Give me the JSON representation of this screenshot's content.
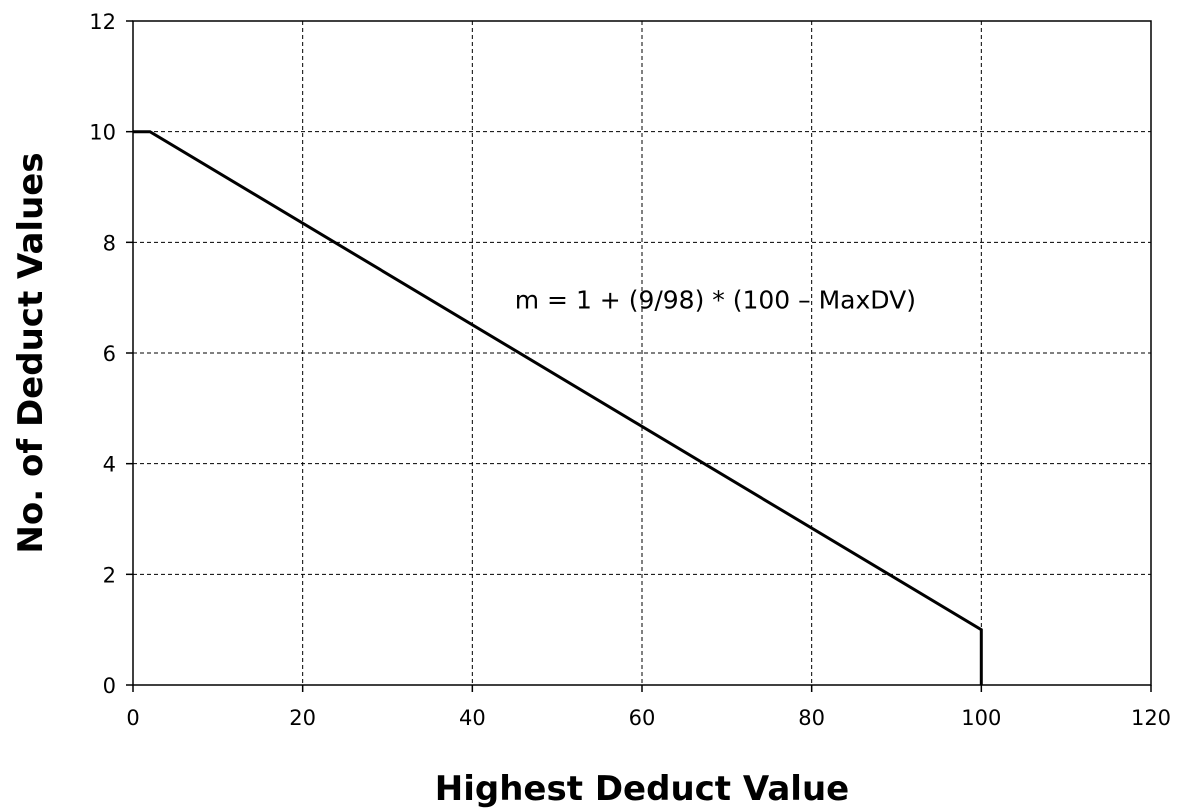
{
  "chart_data": {
    "type": "line",
    "xlabel": "Highest Deduct Value",
    "ylabel": "No. of Deduct Values",
    "xlim": [
      0,
      120
    ],
    "ylim": [
      0,
      12
    ],
    "x_ticks": [
      0,
      20,
      40,
      60,
      80,
      100,
      120
    ],
    "y_ticks": [
      0,
      2,
      4,
      6,
      8,
      10,
      12
    ],
    "grid": true,
    "legend": "none",
    "series": [
      {
        "x": [
          0,
          2,
          100,
          100
        ],
        "y": [
          10,
          10,
          1,
          0
        ]
      }
    ],
    "annotations": [
      {
        "text": "m = 1 + (9/98) * (100 – MaxDV)",
        "x": 45,
        "y": 6.8
      }
    ]
  }
}
